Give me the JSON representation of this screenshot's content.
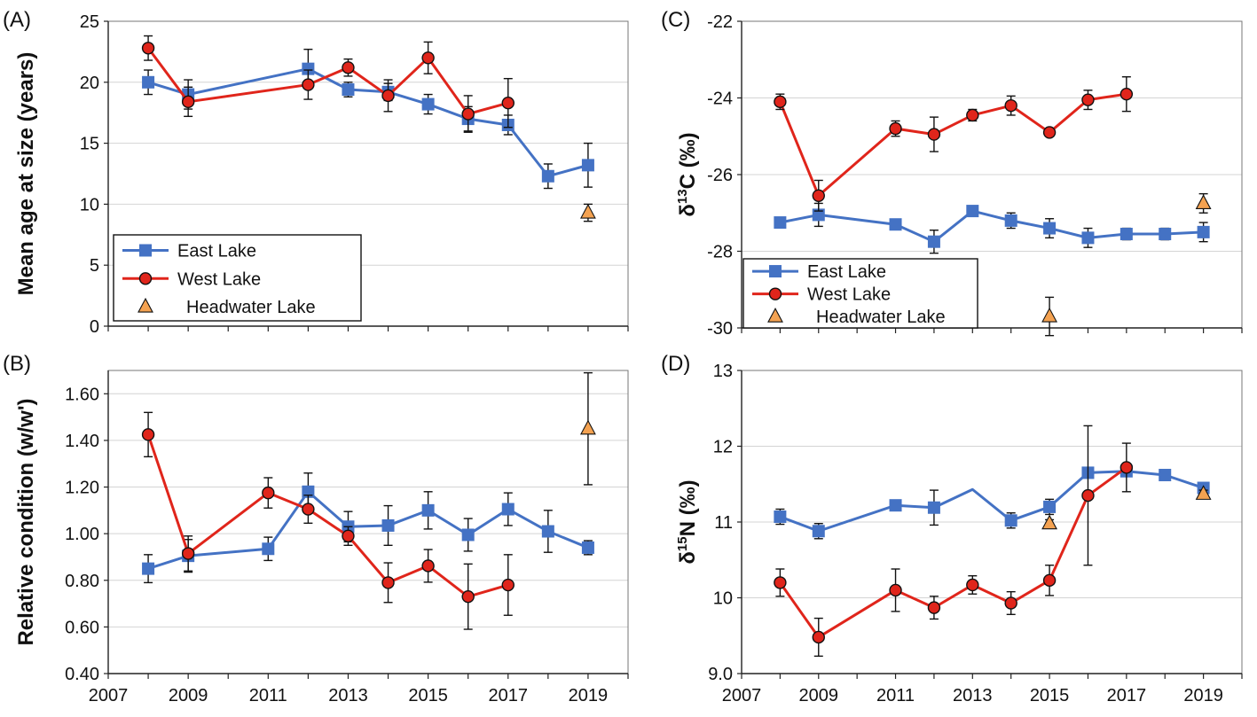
{
  "series_styles": {
    "East Lake": {
      "color": "#4472C4",
      "marker": "square"
    },
    "West Lake": {
      "color": "#E0251B",
      "marker": "circle"
    },
    "Headwater Lake": {
      "color": "#F4A251",
      "marker": "triangle"
    }
  },
  "chart_data": [
    {
      "id": "A",
      "type": "line",
      "panel_label": "(A)",
      "ylabel": "Mean age at size (years)",
      "xlim": [
        2007,
        2020
      ],
      "ylim": [
        0,
        25
      ],
      "yticks": [
        0,
        5,
        10,
        15,
        20,
        25
      ],
      "ytick_labels": [
        "0",
        "5",
        "10",
        "15",
        "20",
        "25"
      ],
      "xtick_labels": [],
      "legend_position": "bottom-left",
      "legend": [
        "East Lake",
        "West Lake",
        "Headwater Lake"
      ],
      "series": [
        {
          "name": "East Lake",
          "x": [
            2008,
            2009,
            2012,
            2013,
            2014,
            2015,
            2016,
            2017,
            2018,
            2019
          ],
          "y": [
            20.0,
            19.0,
            21.1,
            19.4,
            19.2,
            18.2,
            17.0,
            16.5,
            12.3,
            13.2
          ],
          "err": [
            1.0,
            1.2,
            1.6,
            0.6,
            0.7,
            0.8,
            1.0,
            0.8,
            1.0,
            1.8
          ]
        },
        {
          "name": "West Lake",
          "x": [
            2008,
            2009,
            2012,
            2013,
            2014,
            2015,
            2016,
            2017
          ],
          "y": [
            22.8,
            18.4,
            19.8,
            21.2,
            18.9,
            22.0,
            17.4,
            18.3
          ],
          "err": [
            1.0,
            1.2,
            1.2,
            0.7,
            1.3,
            1.3,
            1.5,
            2.0
          ]
        },
        {
          "name": "Headwater Lake",
          "x": [
            2019
          ],
          "y": [
            9.3
          ],
          "err": [
            0.7
          ],
          "line": false
        }
      ]
    },
    {
      "id": "B",
      "type": "line",
      "panel_label": "(B)",
      "ylabel": "Relative condition (w/w')",
      "xlim": [
        2007,
        2020
      ],
      "ylim": [
        0.4,
        1.7
      ],
      "yticks": [
        0.4,
        0.6,
        0.8,
        1.0,
        1.2,
        1.4,
        1.6
      ],
      "ytick_labels": [
        "0.40",
        "0.60",
        "0.80",
        "1.00",
        "1.20",
        "1.40",
        "1.60"
      ],
      "xticks": [
        2007,
        2009,
        2011,
        2013,
        2015,
        2017,
        2019
      ],
      "xtick_labels": [
        "2007",
        "2009",
        "2011",
        "2013",
        "2015",
        "2017",
        "2019"
      ],
      "series": [
        {
          "name": "East Lake",
          "x": [
            2008,
            2009,
            2011,
            2012,
            2013,
            2014,
            2015,
            2016,
            2017,
            2018,
            2019
          ],
          "y": [
            0.85,
            0.905,
            0.935,
            1.18,
            1.03,
            1.035,
            1.1,
            0.995,
            1.105,
            1.01,
            0.94
          ],
          "err": [
            0.06,
            0.07,
            0.05,
            0.08,
            0.065,
            0.085,
            0.08,
            0.07,
            0.07,
            0.09,
            0.03
          ]
        },
        {
          "name": "West Lake",
          "x": [
            2008,
            2009,
            2011,
            2012,
            2013,
            2014,
            2015,
            2016,
            2017
          ],
          "y": [
            1.425,
            0.915,
            1.175,
            1.105,
            0.99,
            0.79,
            0.862,
            0.73,
            0.78
          ],
          "err": [
            0.095,
            0.075,
            0.065,
            0.06,
            0.04,
            0.085,
            0.07,
            0.14,
            0.13
          ]
        },
        {
          "name": "Headwater Lake",
          "x": [
            2019
          ],
          "y": [
            1.45
          ],
          "err": [
            0.24
          ],
          "line": false
        }
      ]
    },
    {
      "id": "C",
      "type": "line",
      "panel_label": "(C)",
      "ylabel": "δ13C (‰)",
      "xlim": [
        2007,
        2020
      ],
      "ylim": [
        -30,
        -22
      ],
      "yticks": [
        -30,
        -28,
        -26,
        -24,
        -22
      ],
      "ytick_labels": [
        "-30",
        "-28",
        "-26",
        "-24",
        "-22"
      ],
      "xtick_labels": [],
      "legend_position": "bottom-left",
      "legend": [
        "East Lake",
        "West Lake",
        "Headwater Lake"
      ],
      "series": [
        {
          "name": "East Lake",
          "x": [
            2008,
            2009,
            2011,
            2012,
            2013,
            2014,
            2015,
            2016,
            2017,
            2018,
            2019
          ],
          "y": [
            -27.25,
            -27.05,
            -27.3,
            -27.75,
            -26.95,
            -27.2,
            -27.4,
            -27.65,
            -27.55,
            -27.55,
            -27.5
          ],
          "err": [
            0.05,
            0.3,
            0.05,
            0.3,
            0.05,
            0.2,
            0.25,
            0.25,
            0.15,
            0.15,
            0.25
          ]
        },
        {
          "name": "West Lake",
          "x": [
            2008,
            2009,
            2011,
            2012,
            2013,
            2014,
            2015,
            2016,
            2017
          ],
          "y": [
            -24.1,
            -26.55,
            -24.8,
            -24.95,
            -24.45,
            -24.2,
            -24.9,
            -24.05,
            -23.9
          ],
          "err": [
            0.2,
            0.4,
            0.2,
            0.45,
            0.15,
            0.25,
            0.1,
            0.25,
            0.45
          ]
        },
        {
          "name": "Headwater Lake",
          "x": [
            2015,
            2019
          ],
          "y": [
            -29.7,
            -26.75
          ],
          "err": [
            0.5,
            0.25
          ],
          "line": false
        }
      ]
    },
    {
      "id": "D",
      "type": "line",
      "panel_label": "(D)",
      "ylabel": "δ15N (‰)",
      "xlim": [
        2007,
        2020
      ],
      "ylim": [
        9,
        13
      ],
      "yticks": [
        9,
        10,
        11,
        12,
        13
      ],
      "ytick_labels": [
        "9.0",
        "10",
        "11",
        "12",
        "13"
      ],
      "xticks": [
        2007,
        2009,
        2011,
        2013,
        2015,
        2017,
        2019
      ],
      "xtick_labels": [
        "2007",
        "2009",
        "2011",
        "2013",
        "2015",
        "2017",
        "2019"
      ],
      "series": [
        {
          "name": "East Lake",
          "x": [
            2008,
            2009,
            2011,
            2012,
            2013,
            2014,
            2015,
            2016,
            2017,
            2018,
            2019
          ],
          "y": [
            11.07,
            10.88,
            11.22,
            11.19,
            11.43,
            11.02,
            11.2,
            11.65,
            11.67,
            11.62,
            11.45
          ],
          "err": [
            0.1,
            0.1,
            0.05,
            0.23,
            0,
            0.1,
            0.1,
            0.05,
            0.05,
            0.05,
            0.05
          ],
          "marker_skip": [
            2013
          ]
        },
        {
          "name": "West Lake",
          "x": [
            2008,
            2009,
            2011,
            2012,
            2013,
            2014,
            2015,
            2016,
            2017
          ],
          "y": [
            10.2,
            9.48,
            10.1,
            9.87,
            10.17,
            9.93,
            10.23,
            11.35,
            11.72
          ],
          "err": [
            0.18,
            0.25,
            0.28,
            0.15,
            0.12,
            0.15,
            0.2,
            0.92,
            0.32
          ]
        },
        {
          "name": "Headwater Lake",
          "x": [
            2015,
            2019
          ],
          "y": [
            10.98,
            11.37
          ],
          "err": [
            0.05,
            0.05
          ],
          "line": false
        }
      ]
    }
  ]
}
